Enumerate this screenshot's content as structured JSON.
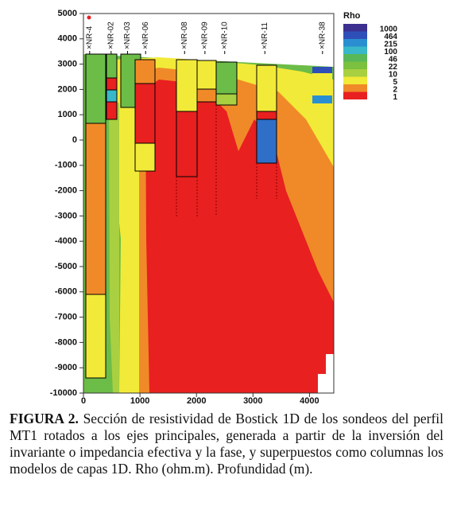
{
  "figure": {
    "ylim": [
      -10000,
      5000
    ],
    "yticks": [
      5000,
      4000,
      3000,
      2000,
      1000,
      0,
      -1000,
      -2000,
      -3000,
      -4000,
      -5000,
      -6000,
      -7000,
      -8000,
      -9000,
      -10000
    ],
    "xlim": [
      0,
      4430
    ],
    "xticks": [
      0,
      1000,
      2000,
      3000,
      4000
    ],
    "stations": [
      {
        "label": "×NR-4",
        "x": 110
      },
      {
        "label": "×NR-02",
        "x": 490
      },
      {
        "label": "×NR-03",
        "x": 780
      },
      {
        "label": "×NR-06",
        "x": 1100
      },
      {
        "label": "×NR-08",
        "x": 1790
      },
      {
        "label": "×NR-09",
        "x": 2150
      },
      {
        "label": "×NR-10",
        "x": 2500
      },
      {
        "label": "×NR-11",
        "x": 3210
      },
      {
        "label": "×NR-38",
        "x": 4230
      }
    ],
    "legend": {
      "title": "Rho",
      "levels": [
        1000,
        464,
        215,
        100,
        46,
        22,
        10,
        5,
        2,
        1
      ],
      "colors": [
        "#3b2f8f",
        "#2f4fb8",
        "#2a8fd0",
        "#38b8c8",
        "#58b858",
        "#7cc040",
        "#a8d040",
        "#f2ea38",
        "#f08a28",
        "#e82020"
      ]
    }
  },
  "caption": {
    "label": "FIGURA 2.",
    "text": "Sección de resistividad de Bostick 1D de los sondeos del perfil MT1 rotados a los ejes principales, generada a partir de la inversión del invariante o impedancia efectiva y la fase, y superpuestos como columnas los modelos de capas 1D. Rho (ohm.m). Profundidad (m)."
  }
}
